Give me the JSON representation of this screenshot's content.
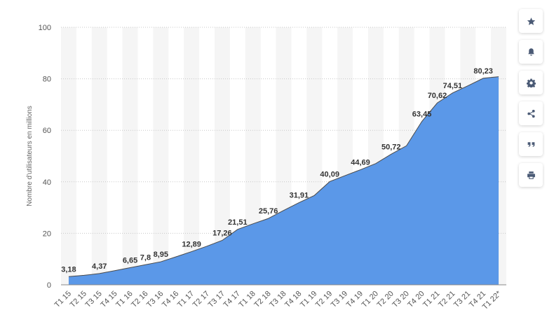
{
  "chart_data": {
    "type": "area",
    "ylabel": "Nombre d'utilisateurs en millions",
    "ylim": [
      0,
      100
    ],
    "yticks": [
      0,
      20,
      40,
      60,
      80,
      100
    ],
    "grid": "horizontal dotted",
    "colors": {
      "fill": "#5b98e8",
      "line": "#4a4a4a",
      "band": "#f5f5f5"
    },
    "categories": [
      "T1 15",
      "T2 15",
      "T3 15",
      "T4 15",
      "T1 16",
      "T2 16",
      "T3 16",
      "T4 16",
      "T1 17",
      "T2 17",
      "T3 17",
      "T4 17",
      "T1 18",
      "T2 18",
      "T3 18",
      "T4 18",
      "T1 19",
      "T2 19",
      "T3 19",
      "T4 19",
      "T1 20",
      "T2 20",
      "T3 20",
      "T4 20",
      "T1 21",
      "T2 21",
      "T3 21",
      "T4 21",
      "T1 22*"
    ],
    "values": [
      3.18,
      3.7,
      4.37,
      5.5,
      6.65,
      7.8,
      8.95,
      10.9,
      12.89,
      15.0,
      17.26,
      21.51,
      23.7,
      25.76,
      28.9,
      31.91,
      34.7,
      40.09,
      42.4,
      44.69,
      47.1,
      50.72,
      54.0,
      63.45,
      70.62,
      74.51,
      77.3,
      80.23,
      80.8
    ],
    "data_labels": [
      {
        "index": 0,
        "text": "3,18"
      },
      {
        "index": 2,
        "text": "4,37"
      },
      {
        "index": 4,
        "text": "6,65"
      },
      {
        "index": 5,
        "text": "7,8"
      },
      {
        "index": 6,
        "text": "8,95"
      },
      {
        "index": 8,
        "text": "12,89"
      },
      {
        "index": 10,
        "text": "17,26"
      },
      {
        "index": 11,
        "text": "21,51"
      },
      {
        "index": 13,
        "text": "25,76"
      },
      {
        "index": 15,
        "text": "31,91"
      },
      {
        "index": 17,
        "text": "40,09"
      },
      {
        "index": 19,
        "text": "44,69"
      },
      {
        "index": 21,
        "text": "50,72"
      },
      {
        "index": 23,
        "text": "63,45"
      },
      {
        "index": 24,
        "text": "70,62"
      },
      {
        "index": 25,
        "text": "74,51"
      },
      {
        "index": 27,
        "text": "80,23"
      }
    ]
  },
  "toolbar": [
    {
      "name": "star-icon"
    },
    {
      "name": "bell-icon"
    },
    {
      "name": "gear-icon"
    },
    {
      "name": "share-icon"
    },
    {
      "name": "quote-icon"
    },
    {
      "name": "print-icon"
    }
  ]
}
